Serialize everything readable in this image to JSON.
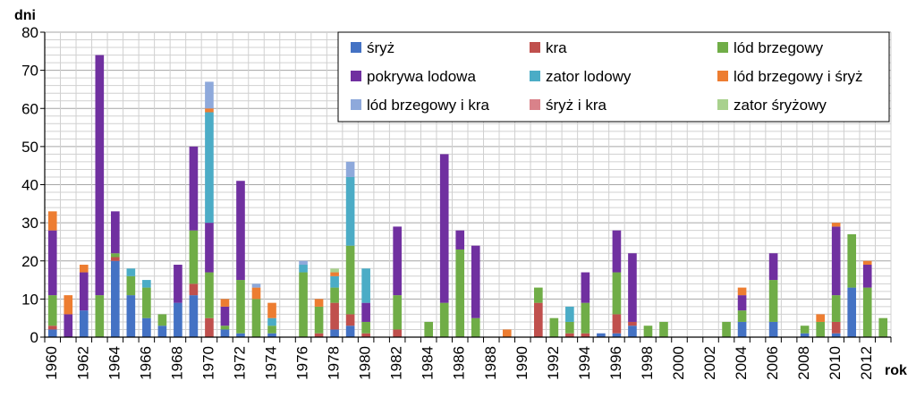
{
  "chart_data": {
    "type": "bar",
    "stacked": true,
    "ylabel": "dni",
    "xlabel": "rok",
    "ylim": [
      0,
      80
    ],
    "yticks": [
      0,
      10,
      20,
      30,
      40,
      50,
      60,
      70,
      80
    ],
    "x": [
      1960,
      1961,
      1962,
      1963,
      1964,
      1965,
      1966,
      1967,
      1968,
      1969,
      1970,
      1971,
      1972,
      1973,
      1974,
      1975,
      1976,
      1977,
      1978,
      1979,
      1980,
      1981,
      1982,
      1983,
      1984,
      1985,
      1986,
      1987,
      1988,
      1989,
      1990,
      1991,
      1992,
      1993,
      1994,
      1995,
      1996,
      1997,
      1998,
      1999,
      2000,
      2001,
      2002,
      2003,
      2004,
      2005,
      2006,
      2007,
      2008,
      2009,
      2010,
      2011,
      2012,
      2013
    ],
    "xtick_labels": [
      "1960",
      "1962",
      "1964",
      "1966",
      "1968",
      "1970",
      "1972",
      "1974",
      "1976",
      "1978",
      "1980",
      "1982",
      "1984",
      "1986",
      "1988",
      "1990",
      "1992",
      "1994",
      "1996",
      "1998",
      "2000",
      "2002",
      "2004",
      "2006",
      "2008",
      "2010",
      "2012"
    ],
    "grid": true,
    "legend_position": "top-right",
    "series": [
      {
        "name": "śryż",
        "color": "#4472C4",
        "values": [
          2,
          0,
          7,
          0,
          20,
          11,
          5,
          3,
          9,
          11,
          0,
          2,
          1,
          0,
          1,
          0,
          0,
          0,
          2,
          3,
          0,
          0,
          0,
          0,
          0,
          0,
          0,
          0,
          0,
          0,
          0,
          0,
          0,
          0,
          0,
          1,
          1,
          3,
          0,
          0,
          0,
          0,
          0,
          0,
          4,
          0,
          4,
          0,
          1,
          0,
          1,
          13,
          0,
          0
        ]
      },
      {
        "name": "kra",
        "color": "#C0504D",
        "values": [
          1,
          0,
          0,
          0,
          1,
          0,
          0,
          0,
          0,
          3,
          5,
          0,
          0,
          0,
          0,
          0,
          0,
          1,
          7,
          3,
          1,
          0,
          2,
          0,
          0,
          0,
          0,
          0,
          0,
          0,
          0,
          9,
          0,
          1,
          1,
          0,
          5,
          1,
          0,
          0,
          0,
          0,
          0,
          0,
          0,
          0,
          0,
          0,
          0,
          0,
          3,
          0,
          0,
          0
        ]
      },
      {
        "name": "lód brzegowy",
        "color": "#70AD47",
        "values": [
          8,
          0,
          0,
          11,
          1,
          5,
          8,
          3,
          0,
          14,
          12,
          1,
          14,
          10,
          2,
          0,
          17,
          7,
          4,
          18,
          3,
          0,
          9,
          0,
          4,
          9,
          23,
          5,
          0,
          0,
          0,
          4,
          5,
          3,
          8,
          0,
          11,
          0,
          3,
          4,
          0,
          0,
          0,
          4,
          3,
          0,
          11,
          0,
          2,
          4,
          7,
          14,
          13,
          5
        ]
      },
      {
        "name": "pokrywa lodowa",
        "color": "#7030A0",
        "values": [
          17,
          6,
          10,
          63,
          11,
          0,
          0,
          0,
          10,
          22,
          13,
          5,
          26,
          0,
          0,
          0,
          0,
          0,
          0,
          0,
          5,
          0,
          18,
          0,
          0,
          39,
          5,
          19,
          0,
          0,
          0,
          0,
          0,
          0,
          8,
          0,
          11,
          18,
          0,
          0,
          0,
          0,
          0,
          0,
          4,
          0,
          7,
          0,
          0,
          0,
          18,
          0,
          6,
          0
        ]
      },
      {
        "name": "zator lodowy",
        "color": "#4BACC6",
        "values": [
          0,
          0,
          0,
          0,
          0,
          2,
          2,
          0,
          0,
          0,
          29,
          0,
          0,
          0,
          2,
          0,
          2,
          0,
          3,
          18,
          9,
          0,
          0,
          0,
          0,
          0,
          0,
          0,
          0,
          0,
          0,
          0,
          0,
          4,
          0,
          0,
          0,
          0,
          0,
          0,
          0,
          0,
          0,
          0,
          0,
          0,
          0,
          0,
          0,
          0,
          0,
          0,
          0,
          0
        ]
      },
      {
        "name": "lód brzegowy i śryż",
        "color": "#ED7D31",
        "values": [
          5,
          5,
          2,
          0,
          0,
          0,
          0,
          0,
          0,
          0,
          1,
          2,
          0,
          3,
          4,
          0,
          0,
          2,
          1,
          0,
          0,
          0,
          0,
          0,
          0,
          0,
          0,
          0,
          0,
          2,
          0,
          0,
          0,
          0,
          0,
          0,
          0,
          0,
          0,
          0,
          0,
          0,
          0,
          0,
          2,
          0,
          0,
          0,
          0,
          2,
          1,
          0,
          1,
          0
        ]
      },
      {
        "name": "lód brzegowy i kra",
        "color": "#8EA9DB",
        "values": [
          0,
          0,
          0,
          0,
          0,
          0,
          0,
          0,
          0,
          0,
          7,
          0,
          0,
          1,
          0,
          0,
          1,
          0,
          0,
          4,
          0,
          0,
          0,
          0,
          0,
          0,
          0,
          0,
          0,
          0,
          0,
          0,
          0,
          0,
          0,
          0,
          0,
          0,
          0,
          0,
          0,
          0,
          0,
          0,
          0,
          0,
          0,
          0,
          0,
          0,
          0,
          0,
          0,
          0
        ]
      },
      {
        "name": "śryż i kra",
        "color": "#D9828A",
        "values": [
          0,
          0,
          0,
          0,
          0,
          0,
          0,
          0,
          0,
          0,
          0,
          0,
          0,
          0,
          0,
          0,
          0,
          0,
          0,
          0,
          0,
          0,
          0,
          0,
          0,
          0,
          0,
          0,
          0,
          0,
          0,
          0,
          0,
          0,
          0,
          0,
          0,
          0,
          0,
          0,
          0,
          0,
          0,
          0,
          0,
          0,
          0,
          0,
          0,
          0,
          0,
          0,
          0,
          0
        ]
      },
      {
        "name": "zator śryżowy",
        "color": "#A9D18E",
        "values": [
          0,
          0,
          0,
          0,
          0,
          0,
          0,
          0,
          0,
          0,
          0,
          0,
          0,
          0,
          0,
          0,
          0,
          0,
          1,
          0,
          0,
          0,
          0,
          0,
          0,
          0,
          0,
          0,
          0,
          0,
          0,
          0,
          0,
          0,
          0,
          0,
          0,
          0,
          0,
          0,
          0,
          0,
          0,
          0,
          0,
          0,
          0,
          0,
          0,
          0,
          0,
          0,
          0,
          0
        ]
      }
    ]
  }
}
